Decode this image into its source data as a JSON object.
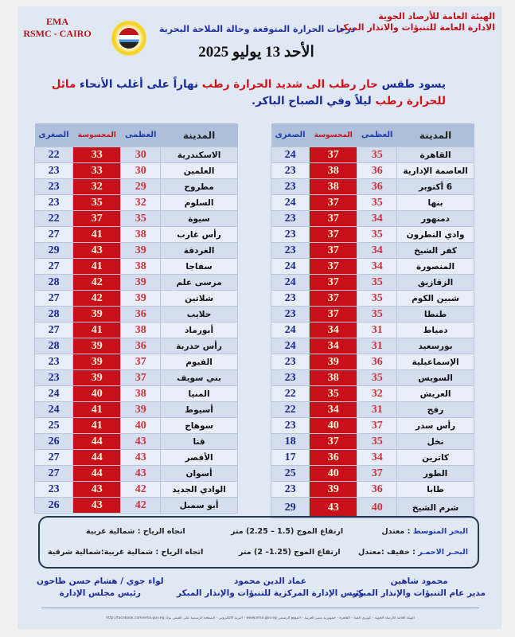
{
  "header": {
    "org_line1": "الهيئة العامة للأرصاد الجوية",
    "org_line2": "الادارة العامة للتنبؤات والانذار المبكر",
    "ema": "EMA",
    "rsmc": "RSMC - CAIRO",
    "subtitle": "درجات الحرارة المتوقعة وحالة الملاحة البحرية",
    "date": "الأحد 13 يوليو 2025"
  },
  "summary": {
    "p1": "يسود طقس ",
    "p2": "حار رطب الى شديد الحرارة رطب",
    "p3": " نهاراً على أغلب الأنحاء ",
    "p4": "مائل للحرارة رطب",
    "p5": " ليلاً وفي الصباح الباكر."
  },
  "columns": {
    "city": "المدينة",
    "max": "العظمى",
    "feels": "المحسوسة",
    "min": "الصغرى"
  },
  "right_table": [
    [
      "القاهرة",
      35,
      37,
      24
    ],
    [
      "العاصمة الإدارية",
      36,
      38,
      23
    ],
    [
      "6 أكتوبر",
      36,
      38,
      23
    ],
    [
      "بنها",
      35,
      37,
      24
    ],
    [
      "دمنهور",
      34,
      37,
      23
    ],
    [
      "وادي النطرون",
      35,
      37,
      23
    ],
    [
      "كفر الشيخ",
      34,
      37,
      23
    ],
    [
      "المنصورة",
      34,
      37,
      24
    ],
    [
      "الزقازيق",
      35,
      37,
      24
    ],
    [
      "شبين الكوم",
      35,
      37,
      23
    ],
    [
      "طنطا",
      35,
      37,
      23
    ],
    [
      "دمياط",
      31,
      34,
      24
    ],
    [
      "بورسعيد",
      31,
      34,
      24
    ],
    [
      "الإسماعيلية",
      36,
      39,
      23
    ],
    [
      "السويس",
      35,
      38,
      23
    ],
    [
      "العريش",
      32,
      35,
      22
    ],
    [
      "رفح",
      31,
      34,
      22
    ],
    [
      "رأس سدر",
      37,
      40,
      23
    ],
    [
      "نخل",
      35,
      37,
      18
    ],
    [
      "كاترين",
      34,
      36,
      17
    ],
    [
      "الطور",
      37,
      40,
      25
    ],
    [
      "طابا",
      36,
      39,
      23
    ],
    [
      "شرم الشيخ",
      40,
      43,
      29
    ]
  ],
  "left_table": [
    [
      "الاسكندرية",
      30,
      33,
      22
    ],
    [
      "العلمين",
      30,
      33,
      23
    ],
    [
      "مطروح",
      29,
      32,
      23
    ],
    [
      "السلوم",
      32,
      35,
      23
    ],
    [
      "سيوة",
      35,
      37,
      22
    ],
    [
      "رأس غارب",
      38,
      41,
      27
    ],
    [
      "الغردقة",
      39,
      43,
      29
    ],
    [
      "سفاجا",
      38,
      41,
      27
    ],
    [
      "مرسى علم",
      39,
      42,
      28
    ],
    [
      "شلاتين",
      39,
      42,
      27
    ],
    [
      "حلايب",
      36,
      39,
      28
    ],
    [
      "أبورماد",
      38,
      41,
      27
    ],
    [
      "رأس حدربة",
      36,
      39,
      28
    ],
    [
      "الفيوم",
      37,
      39,
      23
    ],
    [
      "بني سويف",
      37,
      39,
      23
    ],
    [
      "المنيا",
      38,
      40,
      24
    ],
    [
      "أسيوط",
      39,
      41,
      24
    ],
    [
      "سوهاج",
      40,
      41,
      25
    ],
    [
      "قنا",
      43,
      44,
      26
    ],
    [
      "الأقصر",
      43,
      44,
      27
    ],
    [
      "أسوان",
      43,
      44,
      27
    ],
    [
      "الوادي الجديد",
      42,
      43,
      23
    ],
    [
      "أبو سمبل",
      42,
      43,
      26
    ]
  ],
  "marine": {
    "med_name": "البحر المتوسط",
    "med_state": " :  معتدل",
    "med_wave": "ارتفاع الموج (1.5 – 2.25) متر",
    "med_wind": "اتجاه الرياح : شمالية غربية",
    "red_name": "البحـر الاحمـر",
    "red_state": " :  خفيف :معتدل",
    "red_wave": "ارتفاع الموج (1.25– 2) متر",
    "red_wind": "اتجاه الرياح : شمالية غربية:شمالية شرقية"
  },
  "signatures": [
    {
      "name": "محمود شاهين",
      "title": "مدير عام التنبؤات والإنذار المبكر"
    },
    {
      "name": "عماد الدين محمود",
      "title": "رئيس الإدارة المركزية للتنبؤات والإنذار المبكر"
    },
    {
      "name": "لواء جوي / هشام حسن طاحون",
      "title": "رئيس مجلس الإدارة"
    }
  ],
  "footer": "الهيئة العامة للأرصاد الجوية - كوبري القبة - القاهرة - جمهورية مصر العربية - الموقع الرسمي www.ema.gov.eg - البريد الالكتروني - الصفحة الرسمية على الفيس بوك http://facebook.com/ema.gov.eg"
}
